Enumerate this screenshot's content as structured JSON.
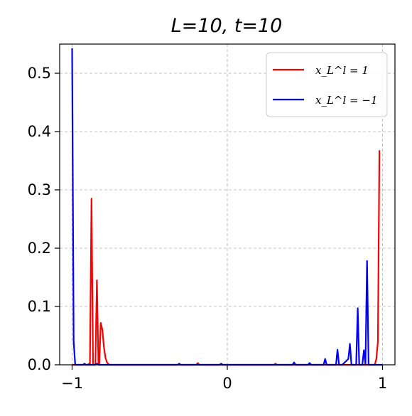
{
  "chart_data": {
    "type": "line",
    "title": "L=10, t=10",
    "xlabel": "",
    "ylabel": "",
    "xlim": [
      -1.08,
      1.08
    ],
    "ylim": [
      0,
      0.55
    ],
    "grid": true,
    "legend_position": "top-right",
    "x_ticks": [
      {
        "value": -1,
        "label": "−1"
      },
      {
        "value": 0,
        "label": "0"
      },
      {
        "value": 1,
        "label": "1"
      }
    ],
    "y_ticks": [
      {
        "value": 0.0,
        "label": "0.0"
      },
      {
        "value": 0.1,
        "label": "0.1"
      },
      {
        "value": 0.2,
        "label": "0.2"
      },
      {
        "value": 0.3,
        "label": "0.3"
      },
      {
        "value": 0.4,
        "label": "0.4"
      },
      {
        "value": 0.5,
        "label": "0.5"
      }
    ],
    "series": [
      {
        "name": "x_L^l = 1",
        "legend_label": "x_L^l = 1",
        "color": "#ff0000",
        "x": [
          -1.0,
          -0.95,
          -0.9,
          -0.89,
          -0.885,
          -0.875,
          -0.865,
          -0.855,
          -0.85,
          -0.84,
          -0.83,
          -0.825,
          -0.815,
          -0.805,
          -0.795,
          -0.785,
          -0.775,
          -0.765,
          -0.755,
          -0.74,
          -0.7,
          -0.6,
          -0.4,
          -0.2,
          -0.19,
          -0.18,
          0.0,
          0.3,
          0.31,
          0.32,
          0.6,
          0.9,
          0.95,
          0.96,
          0.97,
          0.98
        ],
        "y": [
          0.0,
          0.0,
          0.0,
          0.002,
          0.0,
          0.285,
          0.0,
          0.0,
          0.002,
          0.145,
          0.0,
          0.0,
          0.072,
          0.06,
          0.03,
          0.012,
          0.004,
          0.001,
          0.0,
          0.0,
          0.0,
          0.0,
          0.0,
          0.0,
          0.003,
          0.0,
          0.0,
          0.0,
          0.002,
          0.0,
          0.0,
          0.0,
          0.0,
          0.01,
          0.04,
          0.368
        ]
      },
      {
        "name": "x_L^l = −1",
        "legend_label": "x_L^l = −1",
        "color": "#0000ff",
        "x": [
          -1.0,
          -0.99,
          -0.98,
          -0.97,
          -0.95,
          -0.93,
          -0.92,
          -0.91,
          -0.85,
          -0.84,
          -0.83,
          -0.7,
          -0.5,
          -0.32,
          -0.31,
          -0.3,
          -0.05,
          -0.04,
          -0.03,
          0.2,
          0.42,
          0.43,
          0.44,
          0.52,
          0.53,
          0.54,
          0.62,
          0.63,
          0.64,
          0.7,
          0.71,
          0.72,
          0.74,
          0.78,
          0.79,
          0.8,
          0.81,
          0.83,
          0.84,
          0.85,
          0.87,
          0.88,
          0.89,
          0.9,
          0.91,
          0.92,
          0.93,
          1.0
        ],
        "y": [
          0.543,
          0.04,
          0.0,
          0.0,
          0.0,
          0.0,
          0.002,
          0.0,
          0.0,
          0.002,
          0.0,
          0.0,
          0.0,
          0.0,
          0.002,
          0.0,
          0.0,
          0.002,
          0.0,
          0.0,
          0.0,
          0.004,
          0.0,
          0.0,
          0.003,
          0.0,
          0.0,
          0.01,
          0.0,
          0.0,
          0.026,
          0.0,
          0.0,
          0.01,
          0.036,
          0.0,
          0.0,
          0.0,
          0.097,
          0.0,
          0.0,
          0.025,
          0.0,
          0.178,
          0.0,
          0.0,
          0.0,
          0.0
        ]
      }
    ]
  }
}
